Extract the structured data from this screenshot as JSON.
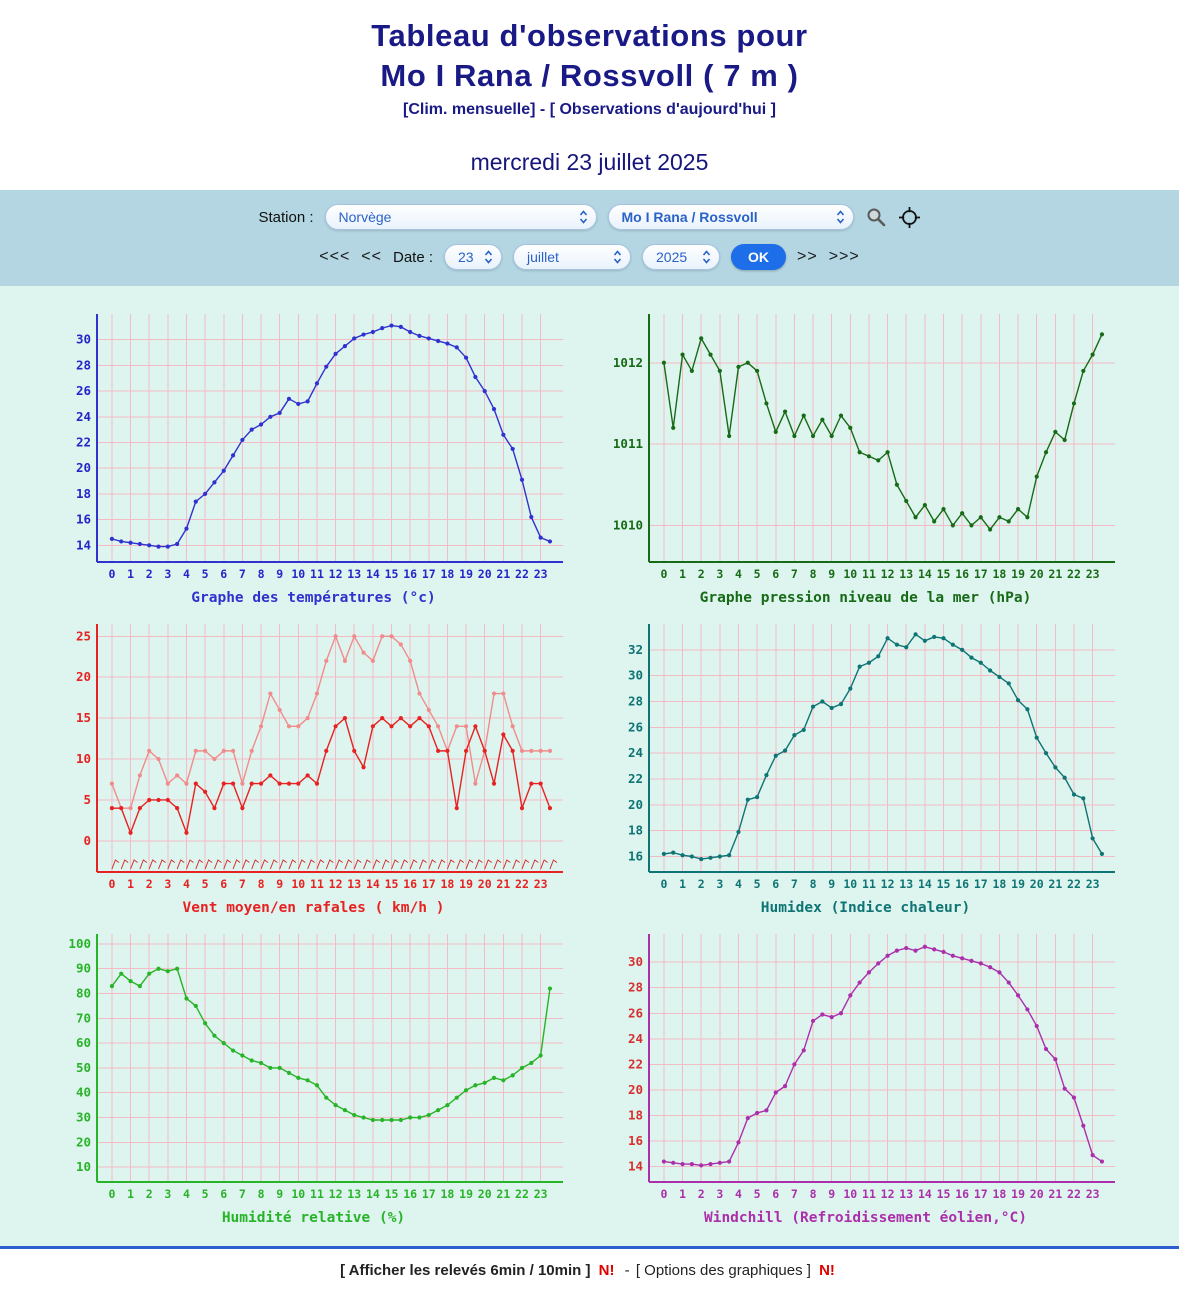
{
  "page": {
    "title_line1": "Tableau d'observations pour",
    "title_line2": "Mo I Rana / Rossvoll ( 7 m )",
    "subnav_left": "[Clim. mensuelle]",
    "subnav_sep": " - ",
    "subnav_right": "[ Observations d'aujourd'hui ]",
    "date_heading": "mercredi 23 juillet 2025"
  },
  "station_bar": {
    "station_label": "Station :",
    "country_select": "Norvège",
    "station_select": "Mo I Rana / Rossvoll",
    "nav": {
      "back3": "<<<",
      "back1": "<<",
      "date_label": "Date :",
      "day": "23",
      "month": "juillet",
      "year": "2025",
      "ok": "OK",
      "fwd1": ">>",
      "fwd3": ">>>"
    }
  },
  "icons": {
    "search": "magnifier-icon",
    "locate": "crosshair-target-icon",
    "select_chevrons": "chevron-up-down-icon"
  },
  "footer": {
    "link1": "[ Afficher les relevés 6min / 10min ]",
    "badge1": "N!",
    "sep": "-",
    "link2": "[ Options des graphiques ]",
    "badge2": "N!"
  },
  "chart_data": {
    "grid_color": "#f4bac6",
    "x_hour_labels": [
      "0",
      "1",
      "2",
      "3",
      "4",
      "5",
      "6",
      "7",
      "8",
      "9",
      "10",
      "11",
      "12",
      "13",
      "14",
      "15",
      "16",
      "17",
      "18",
      "19",
      "20",
      "21",
      "22",
      "23"
    ],
    "charts": [
      {
        "type": "line",
        "title": "Graphe des températures (°c)",
        "color": "#3032cf",
        "tick_color": "#2426c9",
        "yticks": [
          14,
          16,
          18,
          20,
          22,
          24,
          26,
          28,
          30
        ],
        "ylim": [
          12.7,
          32.0
        ],
        "x_start": 0,
        "x_step": 0.5,
        "series": [
          {
            "name": "température",
            "color": "#3032cf",
            "values": [
              14.5,
              14.3,
              14.2,
              14.1,
              14.0,
              13.9,
              13.9,
              14.1,
              15.3,
              17.4,
              18.0,
              18.9,
              19.8,
              21.0,
              22.2,
              23.0,
              23.4,
              24.0,
              24.3,
              25.4,
              25.0,
              25.2,
              26.6,
              27.9,
              28.9,
              29.5,
              30.1,
              30.4,
              30.6,
              30.9,
              31.1,
              31.0,
              30.6,
              30.3,
              30.1,
              29.9,
              29.7,
              29.4,
              28.6,
              27.1,
              26.0,
              24.6,
              22.6,
              21.5,
              19.1,
              16.2,
              14.6,
              14.3
            ]
          }
        ]
      },
      {
        "type": "line",
        "title": "Graphe pression niveau de la mer (hPa)",
        "color": "#176b17",
        "tick_color": "#176b17",
        "yticks": [
          1010,
          1011,
          1012
        ],
        "ylim": [
          1009.55,
          1012.6
        ],
        "x_start": 0,
        "x_step": 0.5,
        "series": [
          {
            "name": "pression mer",
            "color": "#176b17",
            "values": [
              1012.0,
              1011.2,
              1012.1,
              1011.9,
              1012.3,
              1012.1,
              1011.9,
              1011.1,
              1011.95,
              1012.0,
              1011.9,
              1011.5,
              1011.15,
              1011.4,
              1011.1,
              1011.35,
              1011.1,
              1011.3,
              1011.1,
              1011.35,
              1011.2,
              1010.9,
              1010.85,
              1010.8,
              1010.9,
              1010.5,
              1010.3,
              1010.1,
              1010.25,
              1010.05,
              1010.2,
              1010.0,
              1010.15,
              1010.0,
              1010.1,
              1009.95,
              1010.1,
              1010.05,
              1010.2,
              1010.1,
              1010.6,
              1010.9,
              1011.15,
              1011.05,
              1011.5,
              1011.9,
              1012.1,
              1012.35
            ]
          }
        ]
      },
      {
        "type": "line",
        "title": "Vent moyen/en rafales ( km/h )",
        "color": "#e62222",
        "tick_color": "#e62222",
        "yticks": [
          0,
          5,
          10,
          15,
          20,
          25
        ],
        "ylim": [
          -3.8,
          26.5
        ],
        "x_start": 0,
        "x_step": 0.5,
        "barbs": true,
        "barb_color": "#d03030",
        "series": [
          {
            "name": "rafales",
            "color": "#f08c8c",
            "values": [
              7,
              4,
              4,
              8,
              11,
              10,
              7,
              8,
              7,
              11,
              11,
              10,
              11,
              11,
              7,
              11,
              14,
              18,
              16,
              14,
              14,
              15,
              18,
              22,
              25,
              22,
              25,
              23,
              22,
              25,
              25,
              24,
              22,
              18,
              16,
              14,
              11,
              14,
              14,
              7,
              11,
              18,
              18,
              14,
              11,
              11,
              11,
              11
            ]
          },
          {
            "name": "vent moyen",
            "color": "#e62222",
            "values": [
              4,
              4,
              1,
              4,
              5,
              5,
              5,
              4,
              1,
              7,
              6,
              4,
              7,
              7,
              4,
              7,
              7,
              8,
              7,
              7,
              7,
              8,
              7,
              11,
              14,
              15,
              11,
              9,
              14,
              15,
              14,
              15,
              14,
              15,
              14,
              11,
              11,
              4,
              11,
              14,
              11,
              7,
              13,
              11,
              4,
              7,
              7,
              4
            ]
          }
        ]
      },
      {
        "type": "line",
        "title": "Humidex (Indice chaleur)",
        "color": "#0e7474",
        "tick_color": "#0e7474",
        "yticks": [
          16,
          18,
          20,
          22,
          24,
          26,
          28,
          30,
          32
        ],
        "ylim": [
          14.8,
          34.0
        ],
        "x_start": 0,
        "x_step": 0.5,
        "series": [
          {
            "name": "humidex",
            "color": "#0e7474",
            "values": [
              16.2,
              16.3,
              16.1,
              16.0,
              15.8,
              15.9,
              16.0,
              16.1,
              17.9,
              20.4,
              20.6,
              22.3,
              23.8,
              24.2,
              25.4,
              25.8,
              27.6,
              28.0,
              27.5,
              27.8,
              29.0,
              30.7,
              31.0,
              31.5,
              32.9,
              32.4,
              32.2,
              33.2,
              32.7,
              33.0,
              32.9,
              32.4,
              32.0,
              31.4,
              31.0,
              30.4,
              29.9,
              29.4,
              28.1,
              27.4,
              25.2,
              24.0,
              22.9,
              22.1,
              20.8,
              20.5,
              17.4,
              16.2
            ]
          }
        ]
      },
      {
        "type": "line",
        "title": "Humidité relative (%)",
        "color": "#28b428",
        "tick_color": "#28b428",
        "yticks": [
          10,
          20,
          30,
          40,
          50,
          60,
          70,
          80,
          90,
          100
        ],
        "ylim": [
          4,
          104
        ],
        "x_start": 0,
        "x_step": 0.5,
        "series": [
          {
            "name": "humidité",
            "color": "#28b428",
            "values": [
              83,
              88,
              85,
              83,
              88,
              90,
              89,
              90,
              78,
              75,
              68,
              63,
              60,
              57,
              55,
              53,
              52,
              50,
              50,
              48,
              46,
              45,
              43,
              38,
              35,
              33,
              31,
              30,
              29,
              29,
              29,
              29,
              30,
              30,
              31,
              33,
              35,
              38,
              41,
              43,
              44,
              46,
              45,
              47,
              50,
              52,
              55,
              82
            ]
          }
        ]
      },
      {
        "type": "line",
        "title": "Windchill (Refroidissement éolien,°C)",
        "color": "#ab2fab",
        "tick_color": "#d83030",
        "xtick_color": "#ab2fab",
        "yticks": [
          14,
          16,
          18,
          20,
          22,
          24,
          26,
          28,
          30
        ],
        "ylim": [
          12.8,
          32.2
        ],
        "x_start": 0,
        "x_step": 0.5,
        "series": [
          {
            "name": "windchill",
            "color": "#ab2fab",
            "values": [
              14.4,
              14.3,
              14.2,
              14.2,
              14.1,
              14.2,
              14.3,
              14.4,
              15.9,
              17.8,
              18.2,
              18.4,
              19.8,
              20.3,
              22.0,
              23.1,
              25.4,
              25.9,
              25.7,
              26.0,
              27.4,
              28.4,
              29.2,
              29.9,
              30.5,
              30.9,
              31.1,
              30.9,
              31.2,
              31.0,
              30.8,
              30.5,
              30.3,
              30.1,
              29.9,
              29.6,
              29.2,
              28.4,
              27.4,
              26.3,
              25.0,
              23.2,
              22.4,
              20.1,
              19.4,
              17.2,
              14.9,
              14.4
            ]
          }
        ]
      }
    ]
  }
}
